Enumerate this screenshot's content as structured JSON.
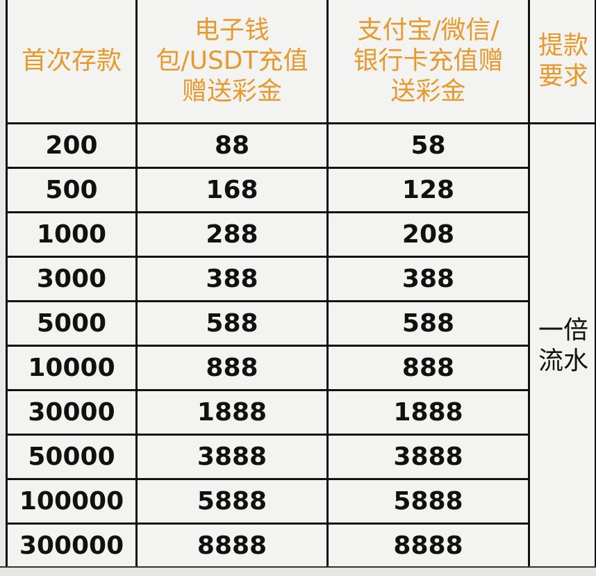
{
  "headers": [
    "首次存款",
    "电子钱包/USDT充值赠送彩金",
    "支付宝/微信/银行卡充值赠送彩金",
    "提款要求"
  ],
  "header_lines": [
    [
      "首次存款"
    ],
    [
      "电子钱",
      "包/USDT充值",
      "赠送彩金"
    ],
    [
      "支付宝/微信/",
      "银行卡充值赠",
      "送彩金"
    ],
    [
      "提款",
      "要求"
    ]
  ],
  "rows": [
    [
      "200",
      "88",
      "58"
    ],
    [
      "500",
      "168",
      "128"
    ],
    [
      "1000",
      "288",
      "208"
    ],
    [
      "3000",
      "388",
      "388"
    ],
    [
      "5000",
      "588",
      "588"
    ],
    [
      "10000",
      "888",
      "888"
    ],
    [
      "30000",
      "1888",
      "1888"
    ],
    [
      "50000",
      "3888",
      "3888"
    ],
    [
      "100000",
      "5888",
      "5888"
    ],
    [
      "300000",
      "8888",
      "8888"
    ]
  ],
  "requirement_lines": [
    "一倍",
    "流水"
  ],
  "colors": {
    "header_text": "#e69a2e",
    "border": "#111111",
    "background": "#f3f3f1"
  }
}
